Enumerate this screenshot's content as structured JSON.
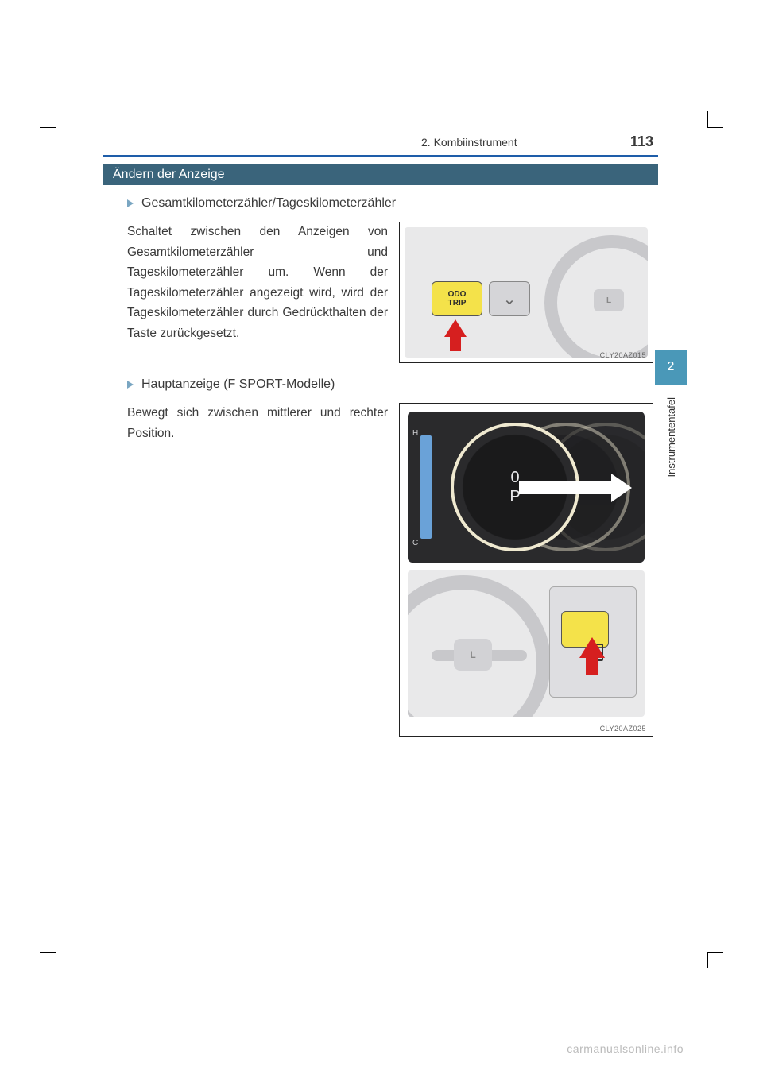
{
  "header": {
    "section": "2. Kombiinstrument",
    "page_number": "113"
  },
  "section_bar": "Ändern der Anzeige",
  "items": [
    {
      "title": "Gesamtkilometerzähler/Tageskilometerzähler",
      "text": "Schaltet zwischen den Anzeigen von Gesamtkilometerzähler und Tageskilometerzähler um. Wenn der Tageskilometerzähler angezeigt wird, wird der Tageskilometerzähler durch Gedrückthalten der Taste zurückgesetzt."
    },
    {
      "title": "Hauptanzeige (F SPORT-Modelle)",
      "text": "Bewegt sich zwischen mittlerer und rechter Position."
    }
  ],
  "illustrations": {
    "odo_button": {
      "line1": "ODO",
      "line2": "TRIP"
    },
    "chevron": "⌄",
    "hub_label": "L",
    "gauge": {
      "value": "0",
      "gear": "P",
      "temp_h": "H",
      "temp_c": "C"
    },
    "caption1": "CLY20AZ015",
    "caption2": "CLY20AZ025"
  },
  "side_tab": {
    "chapter": "2",
    "label": "Instrumententafel"
  },
  "footer": "carmanualsonline.info",
  "colors": {
    "header_rule": "#1e5da9",
    "section_bar_bg": "#3a647b",
    "section_bar_fg": "#ffffff",
    "triangle": "#7aa6c2",
    "side_tab_bg": "#4a98b8",
    "odo_yellow": "#f4e24a",
    "red_arrow": "#d61f1f",
    "cluster_bg": "#2a2a2c",
    "ring": "#efe9d0",
    "footer_fg": "#bbbbbb"
  }
}
